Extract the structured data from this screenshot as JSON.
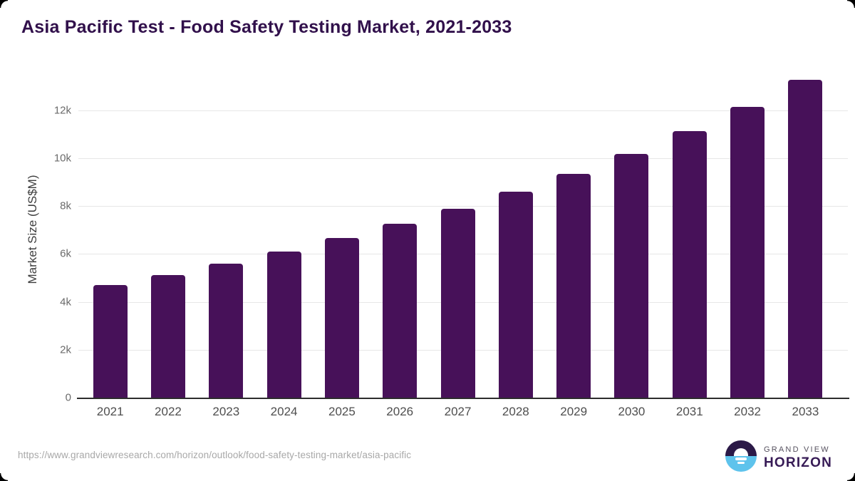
{
  "title": "Asia Pacific Test - Food Safety Testing Market, 2021-2033",
  "chart_data": {
    "type": "bar",
    "title": "Asia Pacific Test - Food Safety Testing Market, 2021-2033",
    "categories": [
      "2021",
      "2022",
      "2023",
      "2024",
      "2025",
      "2026",
      "2027",
      "2028",
      "2029",
      "2030",
      "2031",
      "2032",
      "2033"
    ],
    "values": [
      4700,
      5120,
      5590,
      6090,
      6670,
      7260,
      7890,
      8600,
      9350,
      10190,
      11120,
      12140,
      13260
    ],
    "xlabel": "",
    "ylabel": "Market Size (US$M)",
    "ylim": [
      0,
      13500
    ],
    "yticks": [
      {
        "value": 0,
        "label": "0"
      },
      {
        "value": 2000,
        "label": "2k"
      },
      {
        "value": 4000,
        "label": "4k"
      },
      {
        "value": 6000,
        "label": "6k"
      },
      {
        "value": 8000,
        "label": "8k"
      },
      {
        "value": 10000,
        "label": "10k"
      },
      {
        "value": 12000,
        "label": "12k"
      }
    ],
    "grid": "horizontal",
    "legend": "none",
    "bar_color": "#471159"
  },
  "footer": {
    "source_url": "https://www.grandviewresearch.com/horizon/outlook/food-safety-testing-market/asia-pacific",
    "logo": {
      "line1": "GRAND VIEW",
      "line2": "HORIZON",
      "icon": "horizon-sunset-circle-icon",
      "icon_colors": {
        "top": "#2b1947",
        "bottom": "#5ec3ec"
      }
    }
  },
  "colors": {
    "bar": "#471159",
    "title": "#31104b",
    "axis_line": "#2d2d2d",
    "gridline": "#e7e7e7",
    "y_tick": "#6b6b6b",
    "x_tick": "#4e4e4e",
    "url": "#a8a8a8",
    "background": "#ffffff"
  }
}
